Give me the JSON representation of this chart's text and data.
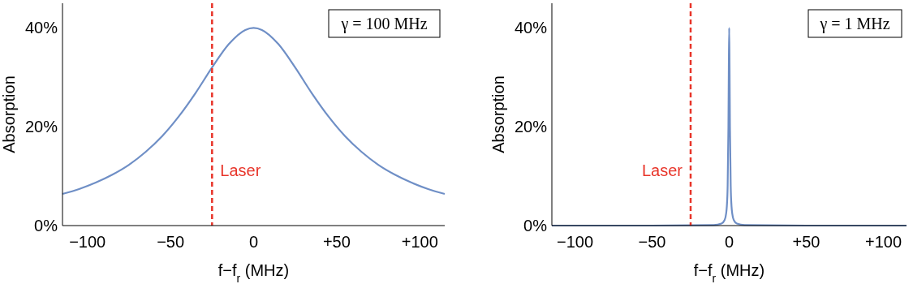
{
  "chart_data": [
    {
      "type": "line",
      "xlabel": "f−f$_{r}$ (MHz)",
      "ylabel": "Absorption",
      "annotations": [
        "γ = 100 MHz"
      ],
      "x": [
        -115,
        -105,
        -95,
        -85,
        -75,
        -65,
        -55,
        -45,
        -35,
        -25,
        -15,
        -5,
        0,
        5,
        15,
        25,
        35,
        45,
        55,
        65,
        75,
        85,
        95,
        105,
        115
      ],
      "series": [
        {
          "color": "#6f8fc6",
          "values": [
            6.4,
            7.4,
            8.7,
            10.3,
            12.3,
            14.9,
            18.1,
            22.1,
            26.8,
            32,
            36.7,
            39.6,
            40,
            39.6,
            36.7,
            32,
            26.8,
            22.1,
            18.1,
            14.9,
            12.3,
            10.3,
            8.7,
            7.4,
            6.4
          ]
        }
      ],
      "xlim": [
        -115,
        115
      ],
      "ylim": [
        0,
        45
      ],
      "xticks": [
        {
          "value": -100,
          "label": "−100"
        },
        {
          "value": -50,
          "label": "−50"
        },
        0,
        {
          "value": 50,
          "label": "+50"
        },
        {
          "value": 100,
          "label": "+100"
        }
      ],
      "yticks": [
        {
          "value": 0,
          "label": "0%"
        },
        {
          "value": 20,
          "label": "20%"
        },
        {
          "value": 40,
          "label": "40%"
        }
      ],
      "ref_lines": [
        {
          "axis": "x",
          "value": -25,
          "label": "Laser",
          "color": "#e8352a",
          "line_style": "dashed"
        }
      ]
    },
    {
      "type": "line",
      "xlabel": "f−f$_{r}$ (MHz)",
      "ylabel": "Absorption",
      "annotations": [
        "γ = 1 MHz"
      ],
      "x": [
        -115,
        -50,
        -10,
        -5,
        -3,
        -2,
        -1.5,
        -1,
        -0.5,
        -0.25,
        0,
        0.25,
        0.5,
        1,
        1.5,
        2,
        3,
        5,
        10,
        50,
        115
      ],
      "series": [
        {
          "color": "#6f8fc6",
          "values": [
            0,
            0,
            0.1,
            0.4,
            1.1,
            2.4,
            4,
            8,
            20,
            32,
            40,
            32,
            20,
            8,
            4,
            2.4,
            1.1,
            0.4,
            0.1,
            0,
            0
          ]
        }
      ],
      "xlim": [
        -115,
        115
      ],
      "ylim": [
        0,
        45
      ],
      "xticks": [
        {
          "value": -100,
          "label": "−100"
        },
        {
          "value": -50,
          "label": "−50"
        },
        0,
        {
          "value": 50,
          "label": "+50"
        },
        {
          "value": 100,
          "label": "+100"
        }
      ],
      "yticks": [
        {
          "value": 0,
          "label": "0%"
        },
        {
          "value": 20,
          "label": "20%"
        },
        {
          "value": 40,
          "label": "40%"
        }
      ],
      "ref_lines": [
        {
          "axis": "x",
          "value": -25,
          "label": "Laser",
          "color": "#e8352a",
          "line_style": "dashed"
        }
      ]
    }
  ]
}
